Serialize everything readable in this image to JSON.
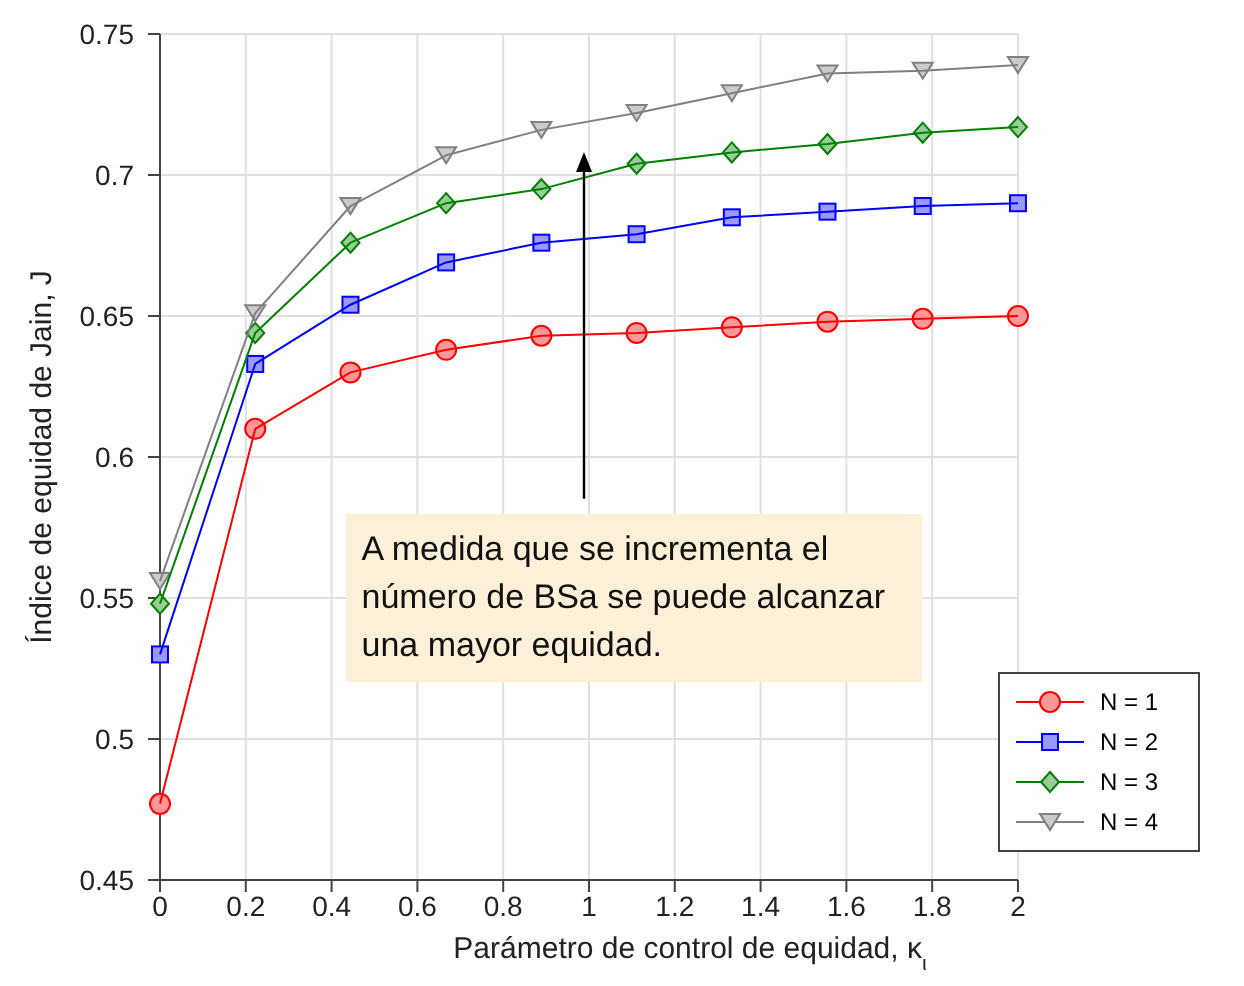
{
  "chart_data": {
    "type": "line",
    "xlabel": "Parámetro de control de equidad, κ$_{ι}$",
    "ylabel": "Índice de equidad de Jain, J",
    "x": [
      0,
      0.222,
      0.444,
      0.667,
      0.889,
      1.111,
      1.333,
      1.556,
      1.778,
      2
    ],
    "series": [
      {
        "name": "N = 1",
        "color": "#ff0000",
        "marker": "circle",
        "values": [
          0.477,
          0.61,
          0.63,
          0.638,
          0.643,
          0.644,
          0.646,
          0.648,
          0.649,
          0.65
        ]
      },
      {
        "name": "N = 2",
        "color": "#0000ff",
        "marker": "square",
        "values": [
          0.53,
          0.633,
          0.654,
          0.669,
          0.676,
          0.679,
          0.685,
          0.687,
          0.689,
          0.69
        ]
      },
      {
        "name": "N = 3",
        "color": "#008000",
        "marker": "diamond",
        "values": [
          0.548,
          0.644,
          0.676,
          0.69,
          0.695,
          0.704,
          0.708,
          0.711,
          0.715,
          0.717
        ]
      },
      {
        "name": "N = 4",
        "color": "#808080",
        "marker": "triangle",
        "values": [
          0.556,
          0.651,
          0.689,
          0.707,
          0.716,
          0.722,
          0.729,
          0.736,
          0.737,
          0.739
        ]
      }
    ],
    "xlim": [
      0,
      2
    ],
    "xticks": [
      0,
      0.2,
      0.4,
      0.6,
      0.8,
      1,
      1.2,
      1.4,
      1.6,
      1.8,
      2
    ],
    "ylim": [
      0.45,
      0.75
    ],
    "yticks": [
      0.45,
      0.5,
      0.55,
      0.6,
      0.65,
      0.7,
      0.75
    ],
    "grid": true,
    "legend": "bottom right",
    "line_style": "solid",
    "annotations": [
      "A medida que se incrementa el número de BSa se puede alcanzar una mayor equidad."
    ]
  }
}
